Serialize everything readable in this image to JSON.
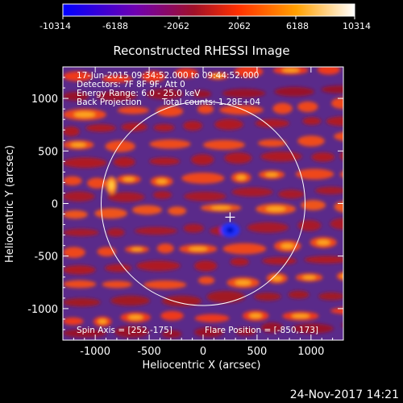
{
  "chart_data": {
    "type": "heatmap",
    "title": "Reconstructed RHESSI Image",
    "xlabel": "Heliocentric X (arcsec)",
    "ylabel": "Heliocentric Y (arcsec)",
    "xlim": [
      -1300,
      1300
    ],
    "ylim": [
      -1300,
      1300
    ],
    "x_ticks": [
      -1000,
      -500,
      0,
      500,
      1000
    ],
    "y_ticks": [
      -1000,
      -500,
      0,
      500,
      1000
    ],
    "colorbar": {
      "min": -10314,
      "max": 10314,
      "ticks": [
        "-10314",
        "-6188",
        "-2062",
        "2062",
        "6188",
        "10314"
      ],
      "colors": [
        "#0000ff",
        "#7000b0",
        "#b01020",
        "#ff4000",
        "#ffb000",
        "#ffffff"
      ]
    },
    "info_lines": [
      "17-Jun-2015 09:34:52.000 to 09:44:52.000",
      "Detectors: 7F 8F 9F, Att 0",
      "Energy Range: 6.0 - 25.0 keV",
      "Back Projection"
    ],
    "total_counts": "Total counts: 1.28E+04",
    "solar_limb_radius_arcsec": 945,
    "disk_center_marker": [
      250,
      -130
    ],
    "flare_source": [
      -850,
      173
    ],
    "spin_axis_text": "Spin Axis = [252,-175]",
    "flare_position_text": "Flare Position = [-850,173]",
    "grid": false
  },
  "footer": {
    "timestamp": "24-Nov-2017 14:21"
  }
}
